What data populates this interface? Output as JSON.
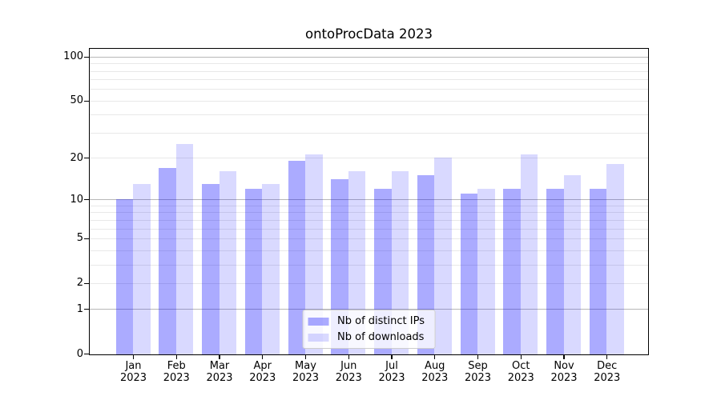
{
  "chart_data": {
    "type": "bar",
    "title": "ontoProcData 2023",
    "categories": [
      "Jan",
      "Feb",
      "Mar",
      "Apr",
      "May",
      "Jun",
      "Jul",
      "Aug",
      "Sep",
      "Oct",
      "Nov",
      "Dec"
    ],
    "tick_year": "2023",
    "series": [
      {
        "name": "Nb of distinct IPs",
        "color": "rgba(0,0,255,0.33)",
        "values": [
          10,
          17,
          13,
          12,
          19,
          14,
          12,
          15,
          11,
          12,
          12,
          12
        ]
      },
      {
        "name": "Nb of downloads",
        "color": "rgba(0,0,255,0.15)",
        "values": [
          13,
          25,
          16,
          13,
          21,
          16,
          16,
          20,
          12,
          21,
          15,
          18
        ]
      }
    ],
    "yscale": "log1p",
    "ylim": [
      0,
      113.3
    ],
    "y_ticks": [
      100,
      50,
      20,
      10,
      5,
      2,
      1,
      0
    ],
    "y_major_gridlines": [
      1,
      10,
      100
    ],
    "y_minor_gridlines": [
      2,
      3,
      4,
      5,
      6,
      7,
      8,
      9,
      20,
      30,
      40,
      50,
      60,
      70,
      80,
      90
    ],
    "legend_position": "lower center",
    "grid": true,
    "colors": {
      "major_grid": "#b8b8b8",
      "minor_grid": "#e8e8e8",
      "spine": "#000000",
      "text": "#000000",
      "background": "#ffffff"
    }
  }
}
